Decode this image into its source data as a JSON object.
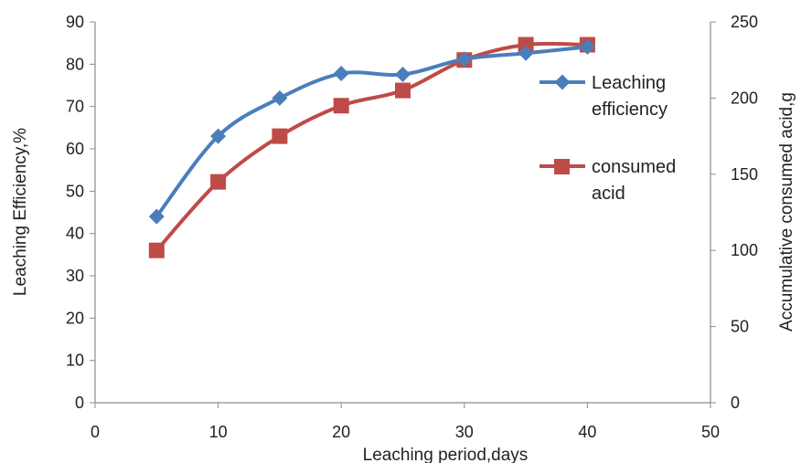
{
  "chart_data": {
    "type": "line",
    "title": "",
    "xlabel": "Leaching period,days",
    "ylabel": "Leaching Efficiency,%",
    "y2label": "Accumulative consumed acid,g",
    "xlim": [
      0,
      50
    ],
    "ylim": [
      0,
      90
    ],
    "y2lim": [
      0,
      250
    ],
    "xticks": [
      "0",
      "10",
      "20",
      "30",
      "40",
      "50"
    ],
    "yticks": [
      "0",
      "10",
      "20",
      "30",
      "40",
      "50",
      "60",
      "70",
      "80",
      "90"
    ],
    "y2ticks": [
      "0",
      "50",
      "100",
      "150",
      "200",
      "250"
    ],
    "grid": false,
    "legend_position": "right",
    "series": [
      {
        "name": "Leaching efficiency",
        "axis": "left",
        "color": "#4a7ebb",
        "marker": "diamond",
        "x": [
          5,
          10,
          15,
          20,
          25,
          30,
          35,
          40
        ],
        "y": [
          44,
          63,
          72,
          77.8,
          77.6,
          81.2,
          82.6,
          84.1
        ]
      },
      {
        "name": "consumed acid",
        "axis": "right",
        "color": "#be4b48",
        "marker": "square",
        "x": [
          5,
          10,
          15,
          20,
          25,
          30,
          35,
          40
        ],
        "y": [
          100,
          145,
          175,
          195,
          205,
          225,
          235,
          235
        ]
      }
    ]
  }
}
